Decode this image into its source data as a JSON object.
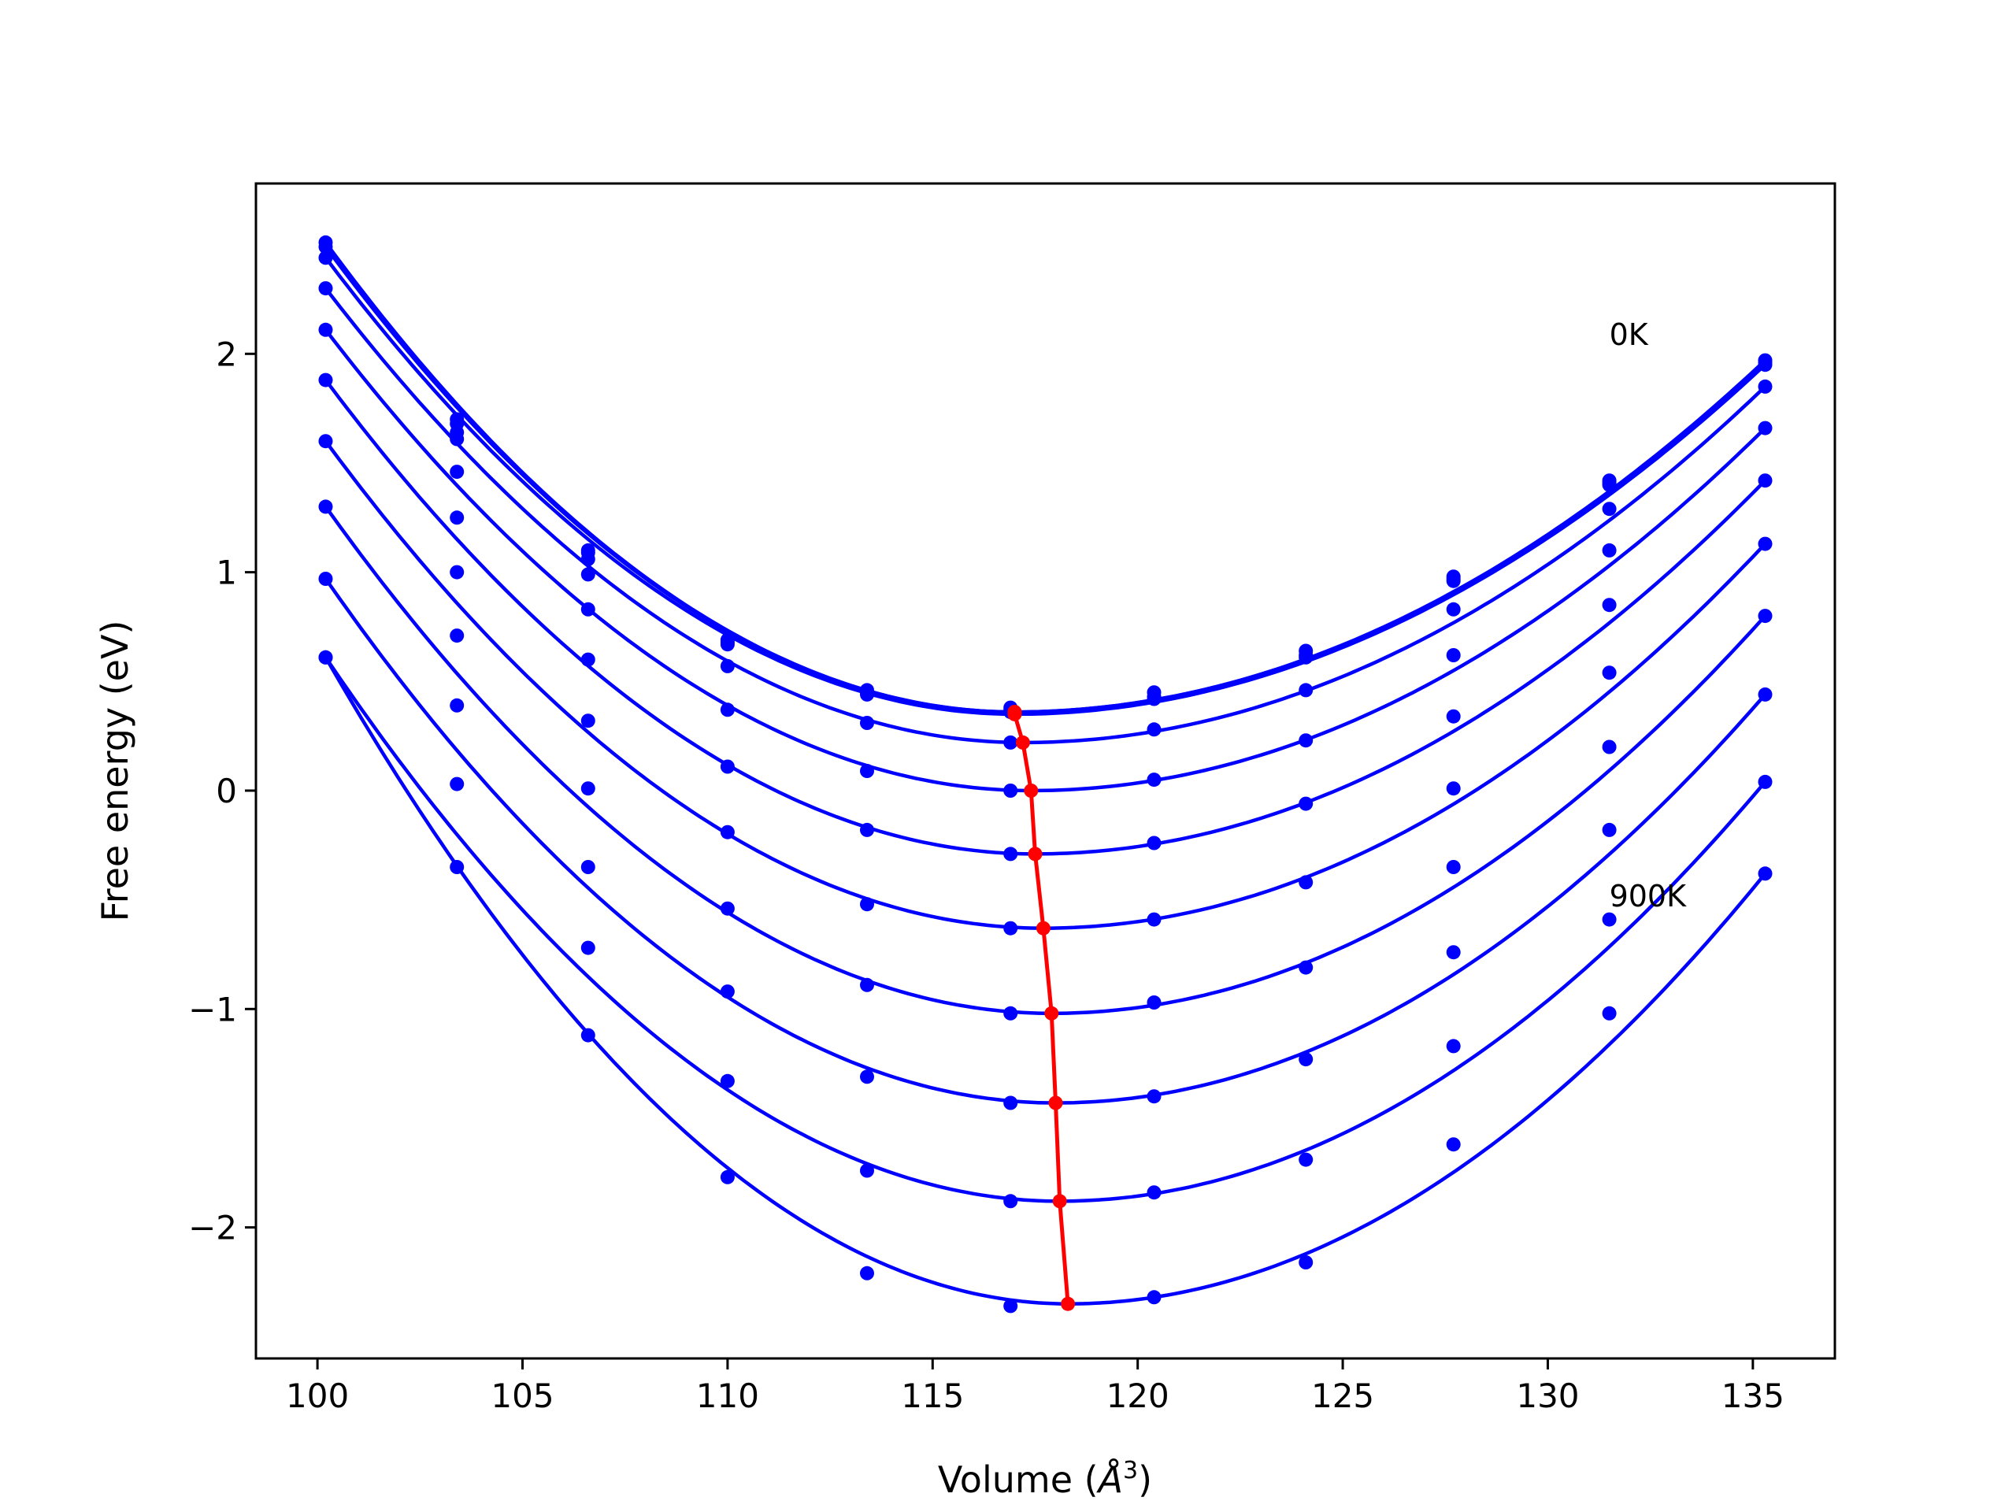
{
  "chart_data": {
    "type": "line",
    "title": "",
    "xlabel_prefix": "Volume (",
    "xlabel_symbol": "Å",
    "xlabel_power": "3",
    "xlabel_suffix": ")",
    "ylabel": "Free energy (eV)",
    "xlim": [
      98.5,
      137
    ],
    "ylim": [
      -2.6,
      2.78
    ],
    "xticks": [
      100,
      105,
      110,
      115,
      120,
      125,
      130,
      135
    ],
    "yticks": [
      -2,
      -1,
      0,
      1,
      2
    ],
    "ytick_labels": [
      "−2",
      "−1",
      "0",
      "1",
      "2"
    ],
    "x_points": [
      100.2,
      103.4,
      106.6,
      110.0,
      113.4,
      116.9,
      120.4,
      124.1,
      127.7,
      131.5,
      135.3
    ],
    "curve_color": "#0000ff",
    "min_line_color": "#ff0000",
    "series": [
      {
        "label": "0K",
        "min_v": 117.0,
        "min_f": 0.36,
        "points": [
          2.51,
          1.7,
          1.1,
          0.69,
          0.46,
          0.38,
          0.45,
          0.64,
          0.98,
          1.42,
          1.97
        ]
      },
      {
        "min_v": 117.0,
        "min_f": 0.36,
        "points": [
          2.49,
          1.68,
          1.09,
          0.68,
          0.45,
          0.37,
          0.43,
          0.62,
          0.97,
          1.41,
          1.96
        ]
      },
      {
        "min_v": 117.0,
        "min_f": 0.35,
        "points": [
          2.44,
          1.64,
          1.06,
          0.67,
          0.44,
          0.36,
          0.42,
          0.61,
          0.96,
          1.4,
          1.95
        ]
      },
      {
        "min_v": 117.2,
        "min_f": 0.22,
        "points": [
          2.3,
          1.61,
          0.99,
          0.57,
          0.31,
          0.22,
          0.28,
          0.46,
          0.83,
          1.29,
          1.85
        ]
      },
      {
        "min_v": 117.4,
        "min_f": 0.0,
        "points": [
          2.11,
          1.46,
          0.83,
          0.37,
          0.09,
          0.0,
          0.05,
          0.23,
          0.62,
          1.1,
          1.66
        ]
      },
      {
        "min_v": 117.5,
        "min_f": -0.29,
        "points": [
          1.88,
          1.25,
          0.6,
          0.11,
          -0.18,
          -0.29,
          -0.24,
          -0.06,
          0.34,
          0.85,
          1.42
        ]
      },
      {
        "min_v": 117.7,
        "min_f": -0.63,
        "points": [
          1.6,
          1.0,
          0.32,
          -0.19,
          -0.52,
          -0.63,
          -0.59,
          -0.42,
          0.01,
          0.54,
          1.13
        ]
      },
      {
        "min_v": 117.9,
        "min_f": -1.02,
        "points": [
          1.3,
          0.71,
          0.01,
          -0.54,
          -0.89,
          -1.02,
          -0.97,
          -0.81,
          -0.35,
          0.2,
          0.8
        ]
      },
      {
        "min_v": 118.0,
        "min_f": -1.43,
        "points": [
          0.97,
          0.39,
          -0.35,
          -0.92,
          -1.31,
          -1.43,
          -1.4,
          -1.23,
          -0.74,
          -0.18,
          0.44
        ]
      },
      {
        "min_v": 118.1,
        "min_f": -1.88,
        "points": [
          0.61,
          0.03,
          -0.72,
          -1.33,
          -1.74,
          -1.88,
          -1.84,
          -1.69,
          -1.17,
          -0.59,
          0.04
        ]
      },
      {
        "label": "900K",
        "min_v": 118.3,
        "min_f": -2.35,
        "points": [
          0.61,
          -0.35,
          -1.12,
          -1.77,
          -2.21,
          -2.36,
          -2.32,
          -2.16,
          -1.62,
          -1.02,
          -0.38
        ]
      }
    ]
  }
}
